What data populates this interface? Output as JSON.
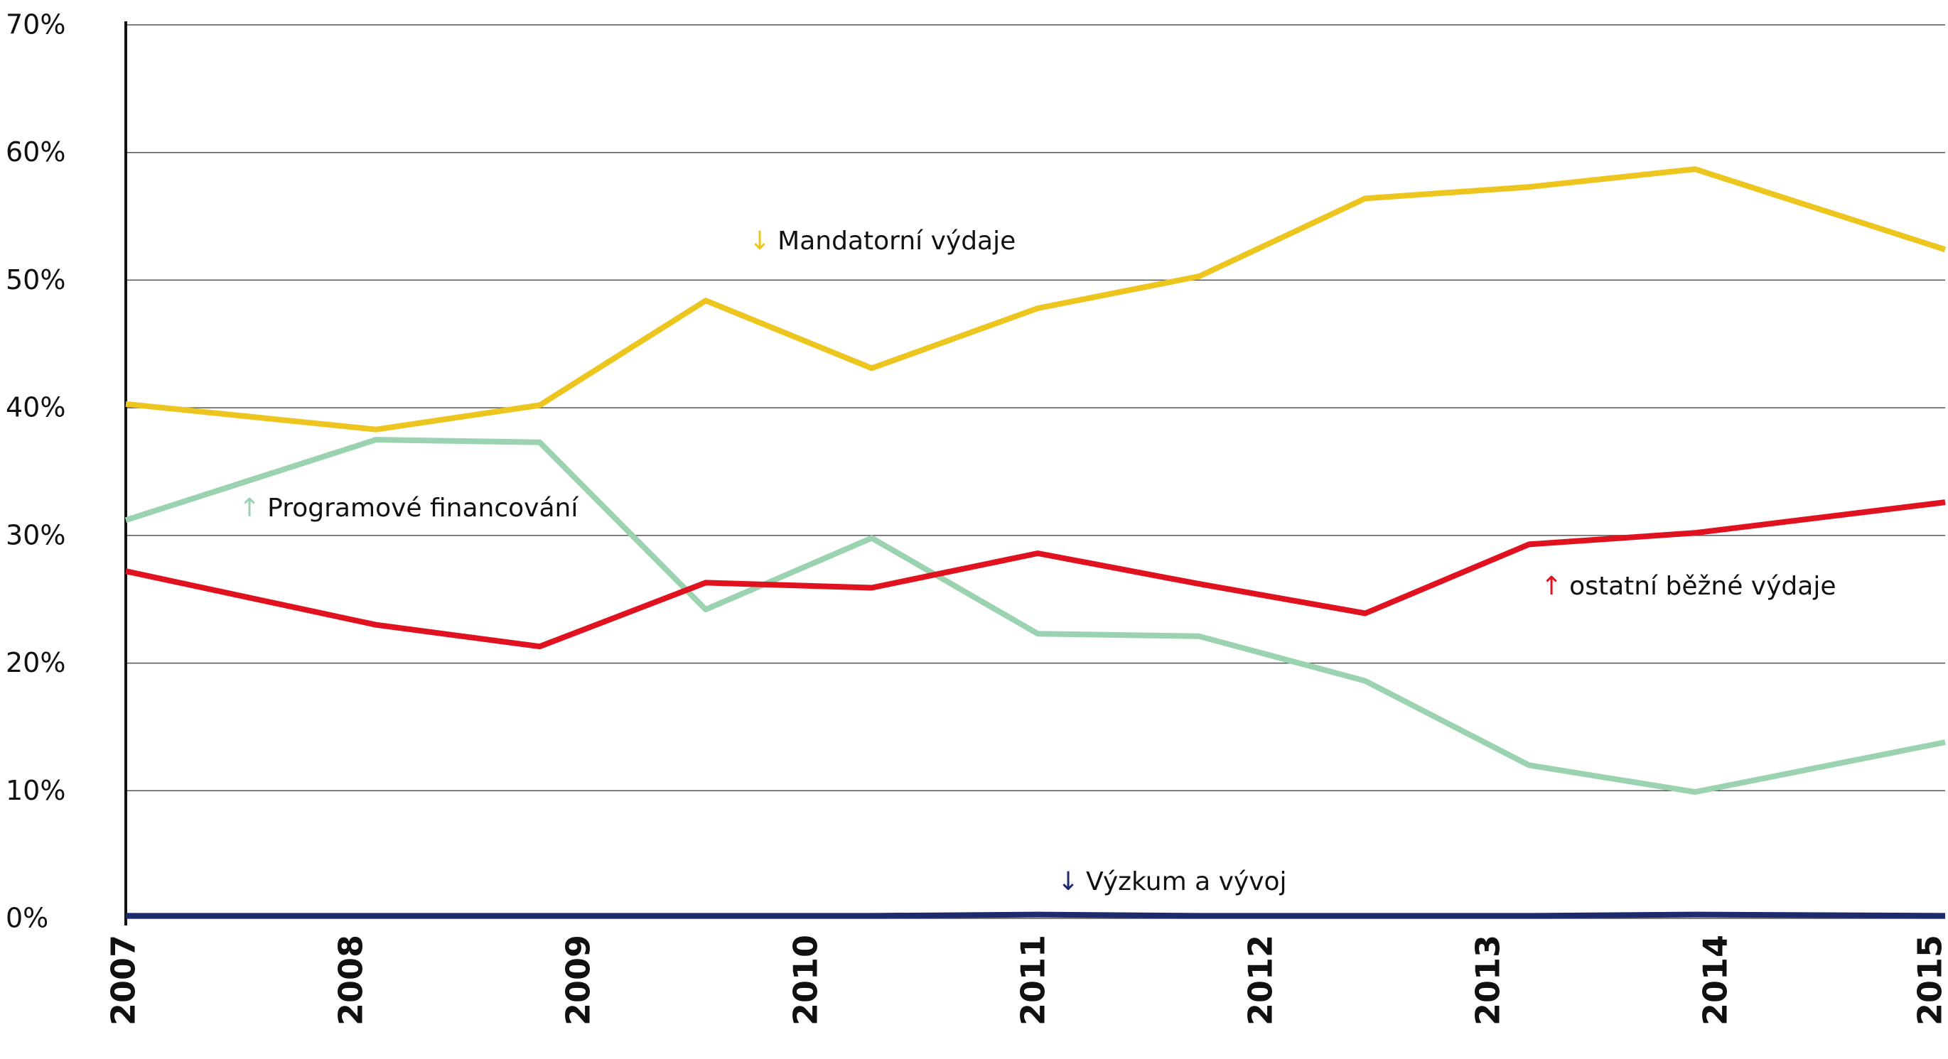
{
  "chart_data": {
    "type": "line",
    "x": [
      2007,
      2008.1,
      2008.82,
      2009.55,
      2010.28,
      2011.01,
      2011.72,
      2012.45,
      2013.17,
      2013.9,
      2015
    ],
    "series": [
      {
        "name": "Mandatorní výdaje",
        "trend_marker": "↓",
        "color": "#ecc61e",
        "values": [
          40.3,
          38.3,
          40.2,
          48.4,
          43.1,
          47.8,
          50.3,
          56.4,
          57.3,
          58.7,
          52.4
        ]
      },
      {
        "name": "Programové financování",
        "trend_marker": "↑",
        "color": "#9bd2b0",
        "values": [
          31.2,
          37.5,
          37.3,
          24.2,
          29.8,
          22.3,
          22.1,
          18.6,
          12.0,
          9.9,
          13.8
        ]
      },
      {
        "name": "ostatní běžné výdaje",
        "trend_marker": "↑",
        "color": "#e0121f",
        "values": [
          27.2,
          23.0,
          21.3,
          26.3,
          25.9,
          28.6,
          26.2,
          23.9,
          29.3,
          30.2,
          32.6
        ]
      },
      {
        "name": "Výzkum a vývoj",
        "trend_marker": "↓",
        "color": "#1d2a6e",
        "values": [
          0.2,
          0.2,
          0.2,
          0.2,
          0.2,
          0.3,
          0.2,
          0.2,
          0.2,
          0.3,
          0.2
        ]
      }
    ],
    "xlim": [
      2007,
      2015
    ],
    "xticks": [
      2007,
      2008,
      2009,
      2010,
      2011,
      2012,
      2013,
      2014,
      2015
    ],
    "ylim": [
      0,
      70
    ],
    "yticks": [
      {
        "value": 0,
        "label": "0%"
      },
      {
        "value": 10,
        "label": "10%"
      },
      {
        "value": 20,
        "label": "20%"
      },
      {
        "value": 30,
        "label": "30%"
      },
      {
        "value": 40,
        "label": "40%"
      },
      {
        "value": 50,
        "label": "50%"
      },
      {
        "value": 60,
        "label": "60%"
      },
      {
        "value": 70,
        "label": "70%"
      }
    ],
    "grid": true
  }
}
